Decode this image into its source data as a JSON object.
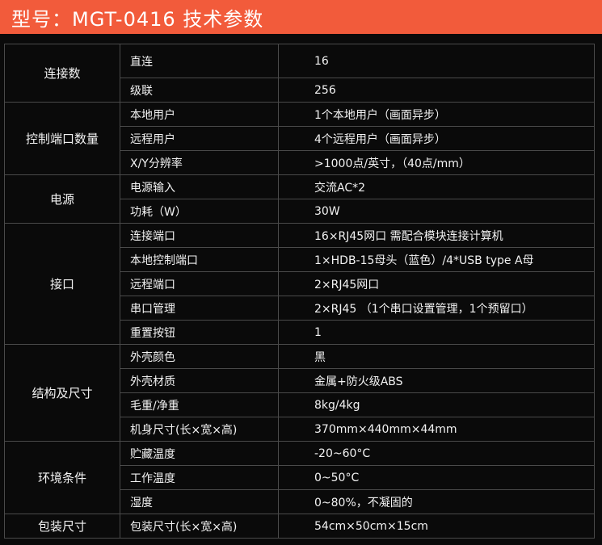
{
  "title": "型号：MGT-0416 技术参数",
  "groups": [
    {
      "label": "连接数",
      "rows": [
        [
          "直连",
          "16"
        ],
        [
          "级联",
          "256"
        ]
      ]
    },
    {
      "label": "控制端口数量",
      "rows": [
        [
          "本地用户",
          "1个本地用户（画面异步）"
        ],
        [
          "远程用户",
          "4个远程用户（画面异步）"
        ],
        [
          "X/Y分辨率",
          ">1000点/英寸，（40点/mm）"
        ]
      ]
    },
    {
      "label": "电源",
      "rows": [
        [
          "电源输入",
          "交流AC*2"
        ],
        [
          "功耗（W）",
          "30W"
        ]
      ]
    },
    {
      "label": "接口",
      "rows": [
        [
          "连接端口",
          "16×RJ45网口  需配合模块连接计算机"
        ],
        [
          "本地控制端口",
          "1×HDB-15母头（蓝色）/4*USB type A母"
        ],
        [
          "远程端口",
          "2×RJ45网口"
        ],
        [
          "串口管理",
          "2×RJ45 （1个串口设置管理，1个预留口）"
        ],
        [
          "重置按钮",
          "1"
        ]
      ]
    },
    {
      "label": "结构及尺寸",
      "rows": [
        [
          "外壳颜色",
          "黑"
        ],
        [
          "外壳材质",
          "金属+防火级ABS"
        ],
        [
          "毛重/净重",
          "8kg/4kg"
        ],
        [
          "机身尺寸(长×宽×高)",
          "370mm×440mm×44mm"
        ]
      ]
    },
    {
      "label": "环境条件",
      "rows": [
        [
          "贮藏温度",
          "-20~60°C"
        ],
        [
          "工作温度",
          "0~50°C"
        ],
        [
          "湿度",
          "0~80%，不凝固的"
        ]
      ]
    },
    {
      "label": "包装尺寸",
      "rows": [
        [
          "包装尺寸(长×宽×高)",
          "54cm×50cm×15cm"
        ]
      ]
    }
  ],
  "colors": {
    "header": "#f25b3b",
    "background": "#0a0a0a",
    "grid": "#4a4a4a"
  }
}
